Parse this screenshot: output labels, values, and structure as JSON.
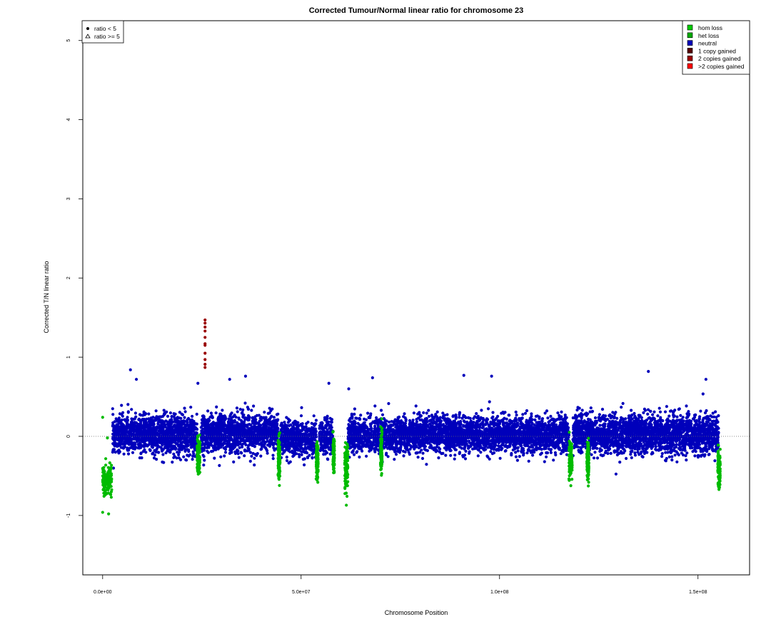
{
  "chart_data": {
    "type": "scatter",
    "title": "Corrected Tumour/Normal linear ratio for chromosome  23",
    "xlabel": "Chromosome Position",
    "ylabel": "Corrected T/N linear ratio",
    "xlim": [
      -5000000,
      163000000
    ],
    "ylim": [
      -1.75,
      5.25
    ],
    "x_ticks": [
      0,
      50000000,
      100000000,
      150000000
    ],
    "x_tick_labels": [
      "0.0e+00",
      "5.0e+07",
      "1.0e+08",
      "1.5e+08"
    ],
    "y_ticks": [
      -1,
      0,
      1,
      2,
      3,
      4,
      5
    ],
    "y_tick_labels": [
      "-1",
      "0",
      "1",
      "2",
      "3",
      "4",
      "5"
    ],
    "reference_line_y": 0,
    "shape_legend": {
      "position": "top-left",
      "entries": [
        {
          "label": "ratio < 5",
          "symbol": "filled-circle"
        },
        {
          "label": "ratio >= 5",
          "symbol": "open-triangle"
        }
      ]
    },
    "color_legend": {
      "position": "top-right",
      "entries": [
        {
          "label": "hom loss",
          "color": "#00cc00"
        },
        {
          "label": "het loss",
          "color": "#00aa00"
        },
        {
          "label": "neutral",
          "color": "#0000bb"
        },
        {
          "label": "1 copy gained",
          "color": "#550000"
        },
        {
          "label": "2 copies gained",
          "color": "#990000"
        },
        {
          "label": ">2 copies gained",
          "color": "#ff0000"
        }
      ]
    },
    "series": [
      {
        "name": "neutral",
        "color": "#0000bb",
        "segments": [
          {
            "x_start": 2500000,
            "x_end": 23800000,
            "y_mean": 0.02,
            "y_spread": 0.22
          },
          {
            "x_start": 24800000,
            "x_end": 44200000,
            "y_mean": 0.04,
            "y_spread": 0.22
          },
          {
            "x_start": 44800000,
            "x_end": 53800000,
            "y_mean": -0.03,
            "y_spread": 0.2
          },
          {
            "x_start": 54600000,
            "x_end": 58000000,
            "y_mean": -0.02,
            "y_spread": 0.2
          },
          {
            "x_start": 61800000,
            "x_end": 117500000,
            "y_mean": 0.02,
            "y_spread": 0.2
          },
          {
            "x_start": 118500000,
            "x_end": 155200000,
            "y_mean": 0.03,
            "y_spread": 0.22
          }
        ],
        "outliers": [
          {
            "x": 7000000,
            "y": 0.84
          },
          {
            "x": 8500000,
            "y": 0.72
          },
          {
            "x": 32000000,
            "y": 0.72
          },
          {
            "x": 36000000,
            "y": 0.76
          },
          {
            "x": 62000000,
            "y": 0.6
          },
          {
            "x": 68000000,
            "y": 0.74
          },
          {
            "x": 91000000,
            "y": 0.77
          },
          {
            "x": 98000000,
            "y": 0.76
          },
          {
            "x": 137500000,
            "y": 0.82
          },
          {
            "x": 152000000,
            "y": 0.72
          },
          {
            "x": 24000000,
            "y": 0.67
          },
          {
            "x": 57000000,
            "y": 0.67
          }
        ]
      },
      {
        "name": "het loss",
        "color": "#00bb00",
        "segments": [
          {
            "x_start": 0,
            "x_end": 2300000,
            "y_mean": -0.55,
            "y_spread": 0.17
          },
          {
            "x_start": 23800000,
            "x_end": 24500000,
            "y_mean": -0.25,
            "y_spread": 0.22
          },
          {
            "x_start": 44200000,
            "x_end": 44700000,
            "y_mean": -0.3,
            "y_spread": 0.22
          },
          {
            "x_start": 53800000,
            "x_end": 54300000,
            "y_mean": -0.3,
            "y_spread": 0.2
          },
          {
            "x_start": 58000000,
            "x_end": 58400000,
            "y_mean": -0.25,
            "y_spread": 0.22
          },
          {
            "x_start": 61000000,
            "x_end": 61800000,
            "y_mean": -0.35,
            "y_spread": 0.28
          },
          {
            "x_start": 70000000,
            "x_end": 70400000,
            "y_mean": -0.2,
            "y_spread": 0.2
          },
          {
            "x_start": 117500000,
            "x_end": 118300000,
            "y_mean": -0.3,
            "y_spread": 0.22
          },
          {
            "x_start": 122000000,
            "x_end": 122500000,
            "y_mean": -0.3,
            "y_spread": 0.2
          },
          {
            "x_start": 155000000,
            "x_end": 155600000,
            "y_mean": -0.4,
            "y_spread": 0.22
          }
        ],
        "outliers": [
          {
            "x": 0,
            "y": 0.24
          },
          {
            "x": 1200000,
            "y": -0.02
          },
          {
            "x": 61400000,
            "y": -0.87
          },
          {
            "x": 0,
            "y": -0.96
          },
          {
            "x": 1500000,
            "y": -0.98
          }
        ]
      },
      {
        "name": "1 copy gained",
        "color": "#990000",
        "points": [
          {
            "x": 25800000,
            "y": 1.47
          },
          {
            "x": 25800000,
            "y": 1.43
          },
          {
            "x": 25800000,
            "y": 1.38
          },
          {
            "x": 25800000,
            "y": 1.33
          },
          {
            "x": 25800000,
            "y": 1.25
          },
          {
            "x": 25800000,
            "y": 1.17
          },
          {
            "x": 25800000,
            "y": 1.15
          },
          {
            "x": 25800000,
            "y": 1.05
          },
          {
            "x": 25800000,
            "y": 0.97
          },
          {
            "x": 25800000,
            "y": 0.91
          },
          {
            "x": 25800000,
            "y": 0.87
          }
        ]
      }
    ]
  }
}
